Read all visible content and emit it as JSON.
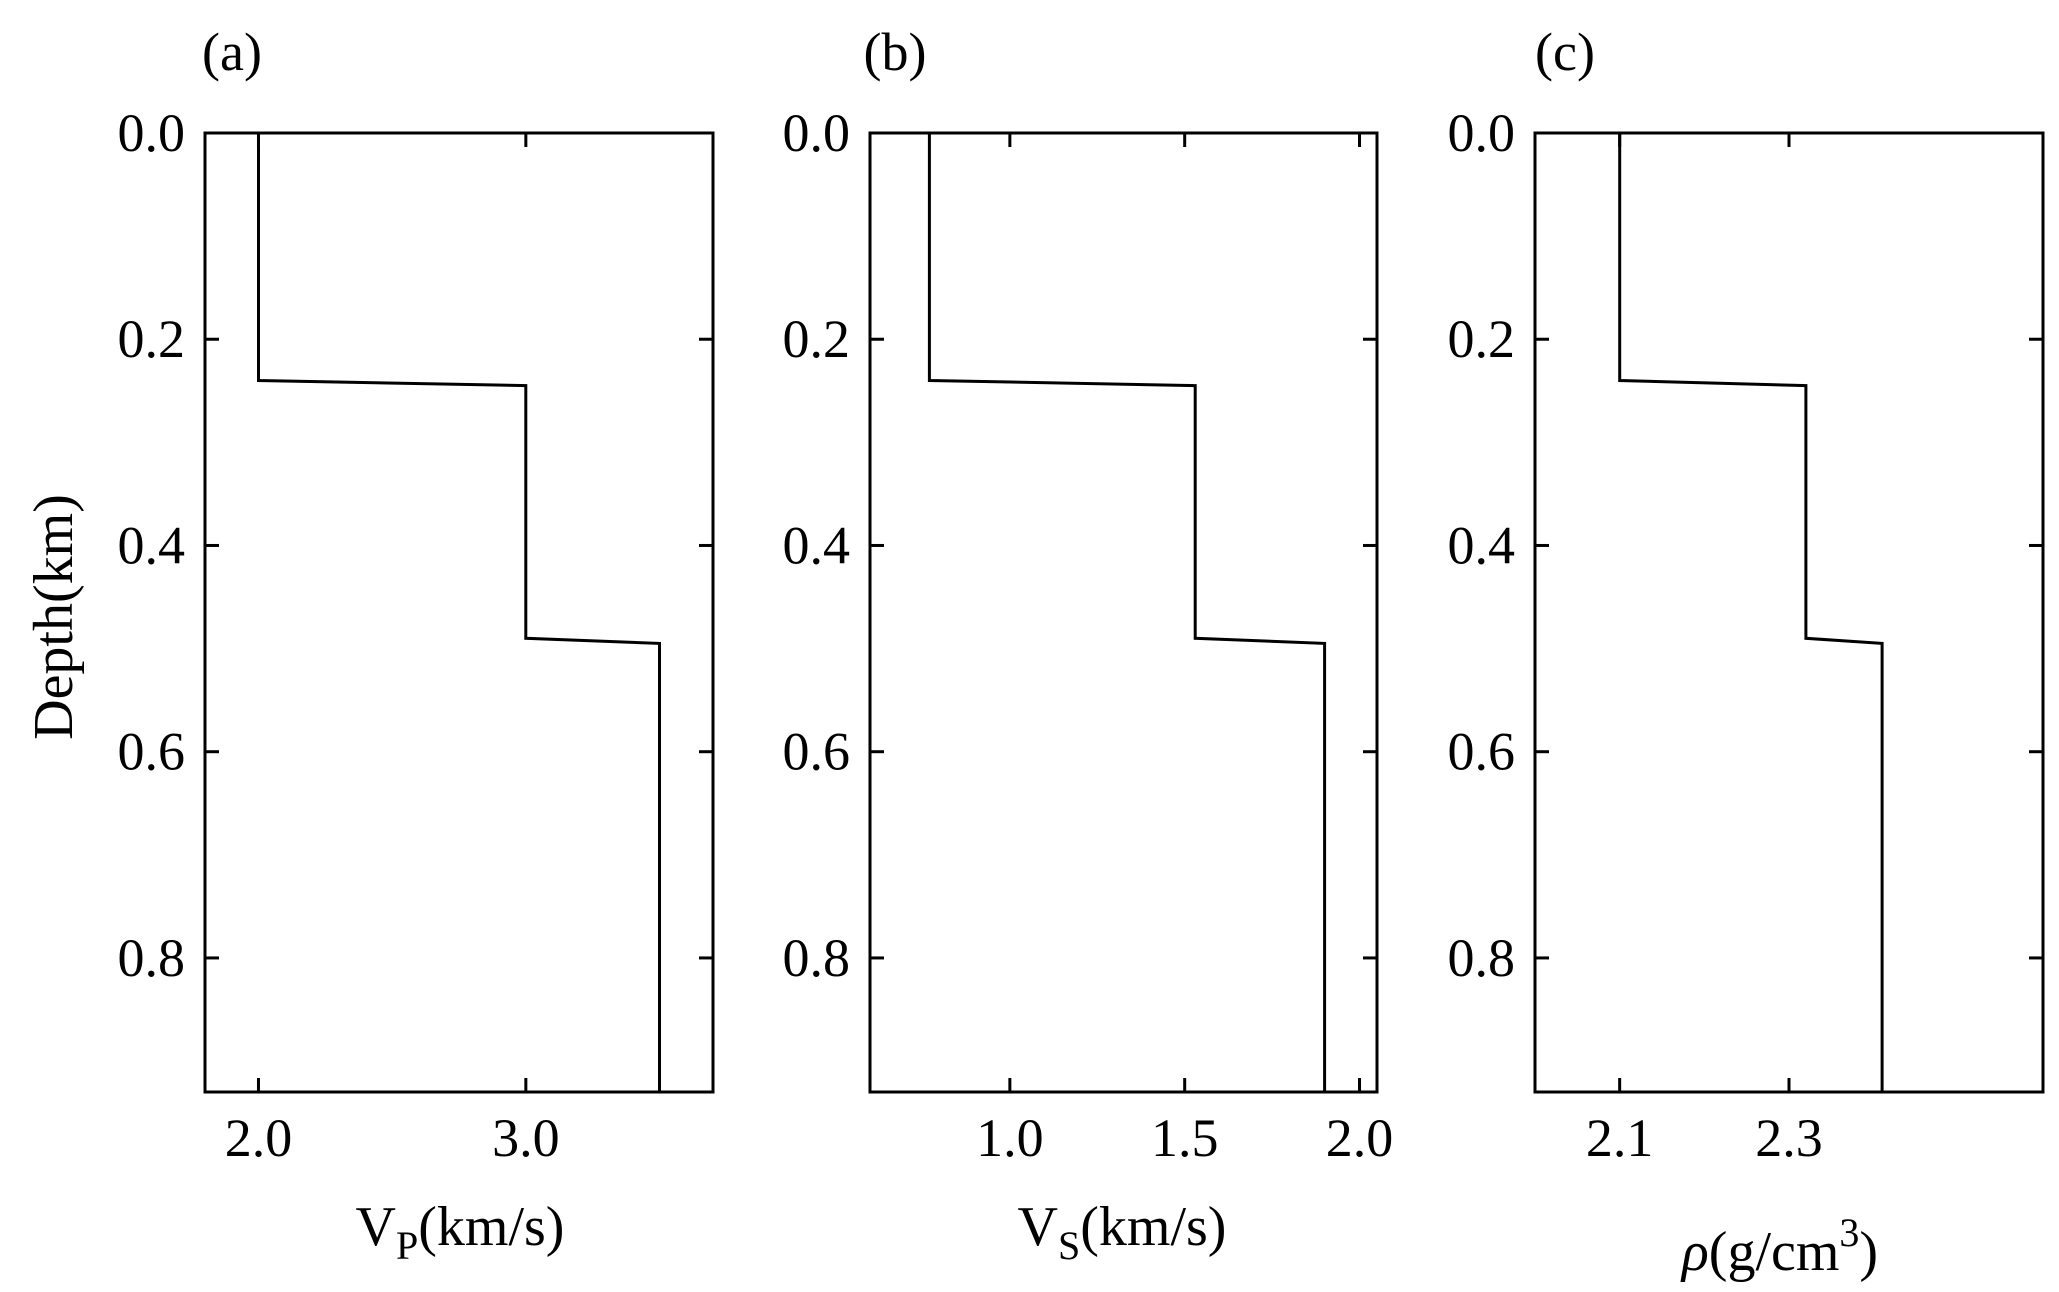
{
  "chart_data": [
    {
      "type": "line",
      "panel_label": "(a)",
      "ylabel": "Depth(km)",
      "xlabel": {
        "main": "V",
        "sub": "P",
        "rest": "(km/s)"
      },
      "xlim": [
        1.8,
        3.7
      ],
      "ylim": [
        0,
        0.93
      ],
      "y_reversed": true,
      "xticks": [
        2.0,
        3.0
      ],
      "xtick_labels": [
        "2.0",
        "3.0"
      ],
      "yticks": [
        0.0,
        0.2,
        0.4,
        0.6,
        0.8
      ],
      "ytick_labels": [
        "0.0",
        "0.2",
        "0.4",
        "0.6",
        "0.8"
      ],
      "series": [
        {
          "x": [
            2.0,
            2.0,
            3.0,
            3.0,
            3.5,
            3.5
          ],
          "y": [
            0.0,
            0.24,
            0.245,
            0.49,
            0.495,
            0.93
          ]
        }
      ]
    },
    {
      "type": "line",
      "panel_label": "(b)",
      "xlabel": {
        "main": "V",
        "sub": "S",
        "rest": "(km/s)"
      },
      "xlim": [
        0.6,
        2.05
      ],
      "ylim": [
        0,
        0.93
      ],
      "y_reversed": true,
      "xticks": [
        1.0,
        1.5,
        2.0
      ],
      "xtick_labels": [
        "1.0",
        "1.5",
        "2.0"
      ],
      "yticks": [
        0.0,
        0.2,
        0.4,
        0.6,
        0.8
      ],
      "ytick_labels": [
        "0.0",
        "0.2",
        "0.4",
        "0.6",
        "0.8"
      ],
      "series": [
        {
          "x": [
            0.77,
            0.77,
            1.53,
            1.53,
            1.9,
            1.9
          ],
          "y": [
            0.0,
            0.24,
            0.245,
            0.49,
            0.495,
            0.93
          ]
        }
      ]
    },
    {
      "type": "line",
      "panel_label": "(c)",
      "xlabel": {
        "main": "ρ",
        "rest": "(g/cm",
        "sup": "3",
        "close": ")"
      },
      "xlim": [
        2.0,
        2.6
      ],
      "ylim": [
        0,
        0.93
      ],
      "y_reversed": true,
      "xticks": [
        2.1,
        2.3
      ],
      "xtick_labels": [
        "2.1",
        "2.3"
      ],
      "yticks": [
        0.0,
        0.2,
        0.4,
        0.6,
        0.8
      ],
      "ytick_labels": [
        "0.0",
        "0.2",
        "0.4",
        "0.6",
        "0.8"
      ],
      "series": [
        {
          "x": [
            2.1,
            2.1,
            2.32,
            2.32,
            2.41,
            2.41
          ],
          "y": [
            0.0,
            0.24,
            0.245,
            0.49,
            0.495,
            0.93
          ]
        }
      ]
    }
  ]
}
